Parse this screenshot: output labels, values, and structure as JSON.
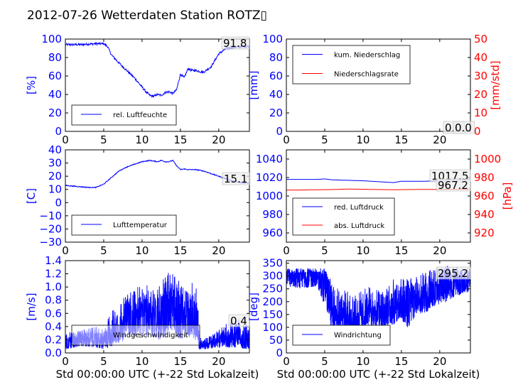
{
  "title": "2012-07-26 Wetterdaten Station ROTZ▯",
  "colors": {
    "left": "#0000ff",
    "right": "#ff0000",
    "wind_legend": "#8888ff"
  },
  "chart_data": [
    {
      "type": "line",
      "ylabel": "[%]",
      "xlim": [
        0,
        24
      ],
      "ylim": [
        0,
        100
      ],
      "xticks": [
        "0",
        "5",
        "10",
        "15",
        "20"
      ],
      "yticks": [
        "0",
        "20",
        "40",
        "60",
        "80",
        "100"
      ],
      "series": [
        {
          "name": "rel. Luftfeuchte",
          "x": [
            0,
            2,
            4,
            5,
            5.5,
            6,
            7,
            8,
            9,
            10,
            10.5,
            11,
            11.5,
            12,
            12.5,
            13,
            13.5,
            14,
            14.5,
            15,
            15.5,
            16,
            16.5,
            17,
            18,
            19,
            20,
            21,
            22,
            23,
            24
          ],
          "values": [
            94,
            94,
            95,
            95,
            92,
            83,
            74,
            66,
            58,
            48,
            43,
            39,
            38,
            40,
            39,
            42,
            43,
            41,
            45,
            62,
            58,
            68,
            66,
            66,
            64,
            70,
            84,
            90,
            91,
            92,
            92
          ]
        }
      ],
      "annotation": "91.8"
    },
    {
      "type": "line",
      "ylabel": "[mm]",
      "ylabel_right": "[mm/std]",
      "xlim": [
        0,
        24
      ],
      "ylim": [
        0,
        100
      ],
      "ylim_right": [
        0,
        50
      ],
      "xticks": [
        "0",
        "5",
        "10",
        "15",
        "20"
      ],
      "yticks": [
        "0",
        "20",
        "40",
        "60",
        "80",
        "100"
      ],
      "yticks_right": [
        "0",
        "10",
        "20",
        "30",
        "40",
        "50"
      ],
      "series": [
        {
          "name": "kum. Niederschlag",
          "x": [
            0,
            24
          ],
          "values": [
            0,
            0
          ]
        },
        {
          "name": "Niederschlagsrate",
          "x": [
            0,
            24
          ],
          "values": [
            0,
            0
          ],
          "axis": "right"
        }
      ],
      "annotations": [
        "0.0",
        "0.0"
      ]
    },
    {
      "type": "line",
      "ylabel": "[C]",
      "xlim": [
        0,
        24
      ],
      "ylim": [
        -30,
        40
      ],
      "xticks": [
        "0",
        "5",
        "10",
        "15",
        "20"
      ],
      "yticks": [
        "−30",
        "−20",
        "−10",
        "0",
        "10",
        "20",
        "30",
        "40"
      ],
      "series": [
        {
          "name": "Lufttemperatur",
          "x": [
            0,
            1,
            2,
            3,
            4,
            5,
            6,
            7,
            8,
            9,
            10,
            11,
            12,
            12.5,
            13,
            13.5,
            14,
            14.5,
            15,
            15.5,
            16,
            17,
            18,
            19,
            20,
            21,
            22,
            23,
            24
          ],
          "values": [
            13,
            12.5,
            12,
            11.5,
            11.5,
            14,
            19,
            24,
            27,
            29,
            31,
            32,
            31,
            32,
            31,
            31,
            32,
            28,
            25,
            25.5,
            25,
            25,
            24,
            22,
            20,
            18,
            16,
            15,
            15
          ]
        }
      ],
      "annotation": "15.1"
    },
    {
      "type": "line",
      "ylabel_right": "[hPa]",
      "xlim": [
        0,
        24
      ],
      "ylim": [
        950,
        1050
      ],
      "ylim_right": [
        910,
        1010
      ],
      "xticks": [
        "0",
        "5",
        "10",
        "15",
        "20"
      ],
      "yticks": [
        "960",
        "980",
        "1000",
        "1020",
        "1040"
      ],
      "yticks_right": [
        "920",
        "940",
        "960",
        "980",
        "1000"
      ],
      "series": [
        {
          "name": "red. Luftdruck",
          "x": [
            0,
            2,
            4,
            5,
            6,
            8,
            10,
            12,
            14,
            15,
            16,
            18,
            20,
            22,
            24
          ],
          "values": [
            1018,
            1018,
            1018,
            1018.5,
            1017.5,
            1017,
            1016.5,
            1015.5,
            1014.5,
            1016,
            1016,
            1016,
            1016.5,
            1017,
            1017.5
          ]
        },
        {
          "name": "abs. Luftdruck",
          "x": [
            0,
            2,
            4,
            6,
            8,
            10,
            12,
            14,
            16,
            18,
            20,
            22,
            24
          ],
          "values": [
            966.5,
            966.5,
            966.8,
            967,
            967.5,
            967.3,
            967,
            966.8,
            967,
            967.1,
            967.2,
            967.2,
            967.2
          ],
          "axis": "right"
        }
      ],
      "annotations": [
        "1017.5",
        "967.2"
      ]
    },
    {
      "type": "line",
      "ylabel": "[m/s]",
      "xlabel": "Std 00:00:00 UTC (+-22 Std Lokalzeit)",
      "xlim": [
        0,
        24
      ],
      "ylim": [
        0,
        1.4
      ],
      "xticks": [
        "0",
        "5",
        "10",
        "15",
        "20"
      ],
      "yticks": [
        "0.0",
        "0.2",
        "0.4",
        "0.6",
        "0.8",
        "1.0",
        "1.2",
        "1.4"
      ],
      "series": [
        {
          "name": "Windgeschwindigkeit",
          "x": [
            0,
            2,
            4,
            5,
            6,
            7,
            8,
            9,
            10,
            11,
            12,
            13,
            14,
            15,
            16,
            17,
            17.5,
            18,
            20,
            22,
            24
          ],
          "values": [
            0.2,
            0.25,
            0.2,
            0.2,
            0.35,
            0.4,
            0.55,
            0.6,
            0.65,
            0.7,
            0.6,
            0.7,
            0.85,
            0.65,
            0.5,
            0.5,
            0.15,
            0.12,
            0.2,
            0.3,
            0.2
          ],
          "lows": [
            0.05,
            0.1,
            0.08,
            0.05,
            0.1,
            0.15,
            0.2,
            0.25,
            0.2,
            0.25,
            0.2,
            0.2,
            0.3,
            0.2,
            0.25,
            0.2,
            0.05,
            0.05,
            0.08,
            0.08,
            0.05
          ],
          "highs": [
            0.3,
            0.35,
            0.4,
            0.35,
            0.65,
            0.75,
            0.9,
            1.0,
            1.0,
            1.05,
            1.0,
            1.2,
            1.25,
            1.05,
            0.95,
            1.25,
            0.3,
            0.2,
            0.35,
            0.55,
            0.4
          ]
        }
      ],
      "annotation": "0.4"
    },
    {
      "type": "line",
      "ylabel": "[deg]",
      "xlabel": "Std 00:00:00 UTC (+-22 Std Lokalzeit)",
      "xlim": [
        0,
        24
      ],
      "ylim": [
        0,
        360
      ],
      "xticks": [
        "0",
        "5",
        "10",
        "15",
        "20"
      ],
      "yticks": [
        "0",
        "50",
        "100",
        "150",
        "200",
        "250",
        "300",
        "350"
      ],
      "series": [
        {
          "name": "Windrichtung",
          "x": [
            0,
            2,
            4,
            5,
            6,
            7,
            8,
            9,
            10,
            11,
            12,
            13,
            14,
            15,
            16,
            17,
            18,
            19,
            20,
            21,
            22,
            23,
            24
          ],
          "values": [
            310,
            310,
            315,
            300,
            200,
            160,
            150,
            130,
            150,
            170,
            160,
            170,
            180,
            190,
            200,
            210,
            230,
            250,
            260,
            270,
            280,
            285,
            295
          ],
          "lows": [
            260,
            250,
            260,
            180,
            80,
            60,
            70,
            70,
            80,
            100,
            90,
            100,
            110,
            130,
            90,
            150,
            150,
            180,
            190,
            200,
            220,
            230,
            240
          ],
          "highs": [
            330,
            330,
            330,
            330,
            300,
            260,
            240,
            230,
            250,
            260,
            250,
            270,
            290,
            290,
            290,
            300,
            320,
            330,
            330,
            340,
            340,
            340,
            330
          ]
        }
      ],
      "annotation": "295.2"
    }
  ]
}
